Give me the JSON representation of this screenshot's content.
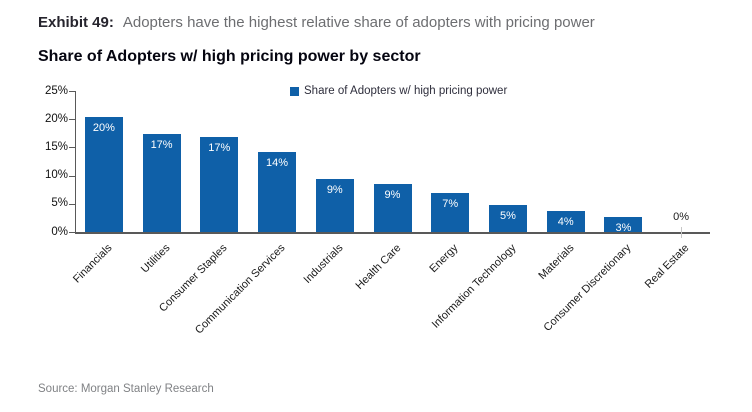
{
  "header": {
    "exhibit_label": "Exhibit 49:",
    "exhibit_description": "Adopters have the highest relative share of adopters with pricing power"
  },
  "footer": {
    "source": "Source: Morgan Stanley Research"
  },
  "colors": {
    "bar_blue": "#0F60A8",
    "axis_gray": "#595959",
    "header_gray": "#6D6E71",
    "source_gray": "#808285",
    "value_label_inside": "#FFFFFF",
    "value_label_outside": "#1A1A1A"
  },
  "chart_data": {
    "type": "bar",
    "title": "Share of Adopters w/ high pricing power by sector",
    "xlabel": "",
    "ylabel": "",
    "ylim": [
      0,
      25
    ],
    "yticks": [
      "0%",
      "5%",
      "10%",
      "15%",
      "20%",
      "25%"
    ],
    "grid": false,
    "legend_position": "top-center",
    "legend": [
      {
        "label": "Share of Adopters w/ high pricing power",
        "color": "#0F60A8",
        "swatch": "square-icon"
      }
    ],
    "categories": [
      "Financials",
      "Utilities",
      "Consumer Staples",
      "Communication Services",
      "Industrials",
      "Health Care",
      "Energy",
      "Information Technology",
      "Materials",
      "Consumer Discretionary",
      "Real Estate"
    ],
    "values": [
      20,
      17,
      17,
      14,
      9,
      9,
      7,
      5,
      4,
      3,
      0
    ],
    "value_labels": [
      "20%",
      "17%",
      "17%",
      "14%",
      "9%",
      "9%",
      "7%",
      "5%",
      "4%",
      "3%",
      "0%"
    ],
    "values_precise": [
      20.4,
      17.4,
      16.8,
      14.1,
      9.4,
      8.5,
      6.9,
      4.8,
      3.7,
      2.6,
      0
    ],
    "bar_color": "#0F60A8"
  }
}
